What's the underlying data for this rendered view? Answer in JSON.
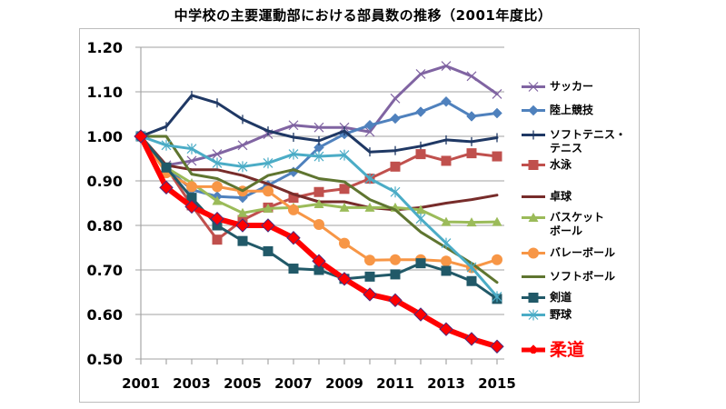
{
  "chart_data": {
    "type": "line",
    "title": "中学校の主要運動部における部員数の推移（2001年度比）",
    "xlabel": "",
    "ylabel": "",
    "x": [
      2001,
      2002,
      2003,
      2004,
      2005,
      2006,
      2007,
      2008,
      2009,
      2010,
      2011,
      2012,
      2013,
      2014,
      2015
    ],
    "x_tick_labels": [
      "2001",
      "2003",
      "2005",
      "2007",
      "2009",
      "2011",
      "2013",
      "2015"
    ],
    "y_tick_labels": [
      "0.50",
      "0.60",
      "0.70",
      "0.80",
      "0.90",
      "1.00",
      "1.10",
      "1.20"
    ],
    "ylim": [
      0.5,
      1.2
    ],
    "grid": "horizontal",
    "legend_position": "right",
    "series": [
      {
        "name": "サッカー",
        "color": "#8064a2",
        "marker": "x",
        "values": [
          1.0,
          0.935,
          0.945,
          0.96,
          0.98,
          1.005,
          1.025,
          1.02,
          1.02,
          1.01,
          1.085,
          1.14,
          1.158,
          1.135,
          1.095
        ]
      },
      {
        "name": "陸上競技",
        "color": "#4f81bd",
        "marker": "diamond",
        "values": [
          1.0,
          0.93,
          0.88,
          0.865,
          0.862,
          0.89,
          0.92,
          0.975,
          1.005,
          1.025,
          1.04,
          1.055,
          1.078,
          1.045,
          1.052
        ]
      },
      {
        "name": "ソフトテニス・\nテニス",
        "color": "#1f3864",
        "marker": "plus",
        "values": [
          1.0,
          1.022,
          1.092,
          1.075,
          1.038,
          1.012,
          0.998,
          0.99,
          1.012,
          0.965,
          0.968,
          0.978,
          0.992,
          0.988,
          0.997
        ]
      },
      {
        "name": "水泳",
        "color": "#c0504d",
        "marker": "square",
        "values": [
          1.0,
          0.93,
          0.845,
          0.768,
          0.812,
          0.84,
          0.862,
          0.875,
          0.882,
          0.905,
          0.932,
          0.96,
          0.945,
          0.962,
          0.955
        ]
      },
      {
        "name": "卓球",
        "color": "#772c2a",
        "marker": "none",
        "values": [
          1.0,
          0.935,
          0.925,
          0.925,
          0.912,
          0.893,
          0.87,
          0.853,
          0.853,
          0.84,
          0.835,
          0.84,
          0.85,
          0.858,
          0.868
        ]
      },
      {
        "name": "バスケット\nボール",
        "color": "#9bbb59",
        "marker": "triangle",
        "values": [
          1.0,
          0.93,
          0.895,
          0.855,
          0.828,
          0.838,
          0.84,
          0.848,
          0.84,
          0.84,
          0.84,
          0.835,
          0.808,
          0.807,
          0.808
        ]
      },
      {
        "name": "バレーボール",
        "color": "#f79646",
        "marker": "circle",
        "values": [
          1.0,
          0.918,
          0.887,
          0.887,
          0.877,
          0.877,
          0.835,
          0.802,
          0.76,
          0.722,
          0.723,
          0.723,
          0.72,
          0.705,
          0.723
        ]
      },
      {
        "name": "ソフトボール",
        "color": "#5f7530",
        "marker": "none",
        "values": [
          1.0,
          1.0,
          0.915,
          0.905,
          0.878,
          0.912,
          0.925,
          0.905,
          0.898,
          0.858,
          0.835,
          0.785,
          0.75,
          0.715,
          0.672
        ]
      },
      {
        "name": "剣道",
        "color": "#215968",
        "marker": "square",
        "values": [
          1.0,
          0.93,
          0.862,
          0.8,
          0.765,
          0.742,
          0.703,
          0.7,
          0.68,
          0.685,
          0.69,
          0.715,
          0.698,
          0.675,
          0.635
        ]
      },
      {
        "name": "野球",
        "color": "#4bacc6",
        "marker": "star",
        "values": [
          1.0,
          0.98,
          0.972,
          0.94,
          0.932,
          0.94,
          0.96,
          0.955,
          0.958,
          0.905,
          0.875,
          0.815,
          0.76,
          0.706,
          0.64
        ]
      },
      {
        "name": "柔道",
        "color": "#ff0000",
        "marker": "diamond",
        "emphasis": true,
        "values": [
          1.0,
          0.885,
          0.842,
          0.815,
          0.8,
          0.8,
          0.772,
          0.72,
          0.68,
          0.645,
          0.632,
          0.6,
          0.567,
          0.545,
          0.528
        ]
      }
    ]
  }
}
